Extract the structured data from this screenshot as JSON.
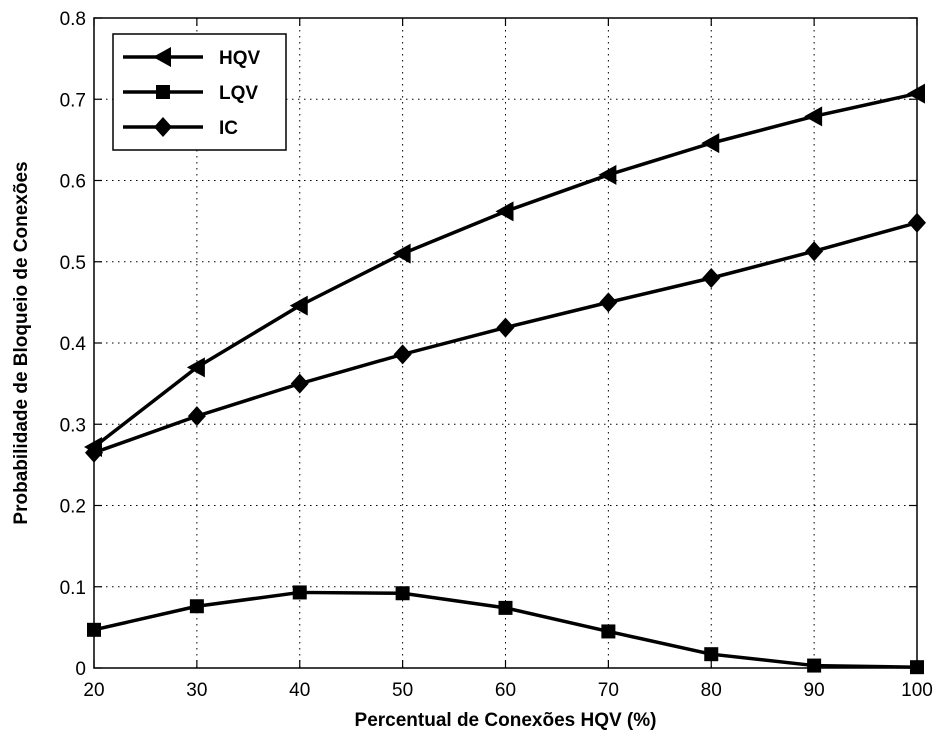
{
  "chart_data": {
    "type": "line",
    "xlabel": "Percentual de Conexões HQV (%)",
    "ylabel": "Probabilidade de Bloqueio de Conexões",
    "x": [
      20,
      30,
      40,
      50,
      60,
      70,
      80,
      90,
      100
    ],
    "xlim": [
      20,
      100
    ],
    "ylim": [
      0,
      0.8
    ],
    "x_ticks": [
      "20",
      "30",
      "40",
      "50",
      "60",
      "70",
      "80",
      "90",
      "100"
    ],
    "y_ticks": [
      "0",
      "0.1",
      "0.2",
      "0.3",
      "0.4",
      "0.5",
      "0.6",
      "0.7",
      "0.8"
    ],
    "grid": true,
    "legend_position": "top-left",
    "series": [
      {
        "name": "HQV",
        "marker": "triangle-left",
        "color": "#000000",
        "values": [
          0.272,
          0.37,
          0.446,
          0.51,
          0.562,
          0.607,
          0.646,
          0.679,
          0.707
        ]
      },
      {
        "name": "LQV",
        "marker": "square",
        "color": "#000000",
        "values": [
          0.047,
          0.076,
          0.093,
          0.092,
          0.074,
          0.045,
          0.017,
          0.003,
          0.001
        ]
      },
      {
        "name": "IC",
        "marker": "diamond",
        "color": "#000000",
        "values": [
          0.265,
          0.31,
          0.35,
          0.386,
          0.419,
          0.45,
          0.48,
          0.513,
          0.548
        ]
      }
    ]
  }
}
